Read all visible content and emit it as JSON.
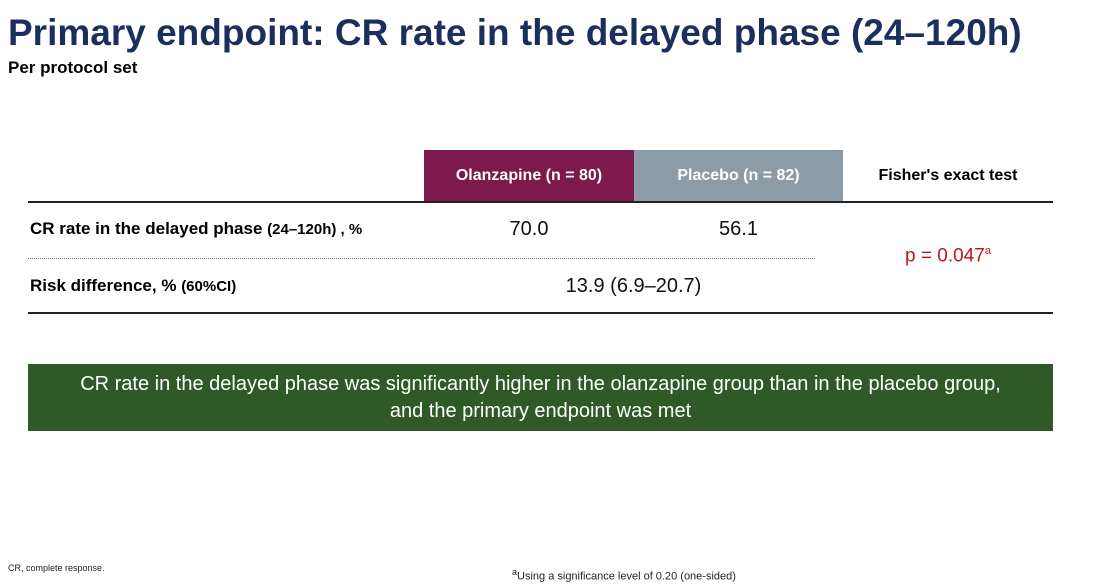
{
  "header": {
    "title": "Primary endpoint: CR rate in the delayed phase (24–120h)",
    "subtitle": "Per protocol set"
  },
  "table": {
    "columns": [
      "Olanzapine (n = 80)",
      "Placebo (n = 82)",
      "Fisher's exact test"
    ],
    "rows": [
      {
        "label": "CR rate in the delayed phase",
        "unit": "(24–120h) , %",
        "values": [
          "70.0",
          "56.1"
        ]
      },
      {
        "label": "Risk difference, %",
        "unit": "(60%CI)",
        "values": [
          "13.9 (6.9–20.7)"
        ]
      }
    ],
    "p_value": "p = 0.047",
    "p_value_note": "a"
  },
  "conclusion": "CR rate in the delayed phase was significantly higher in the olanzapine group than in the placebo group, and the primary endpoint was met",
  "footnotes": [
    {
      "text": "CR, complete response."
    },
    {
      "marker": "a",
      "text": "Using a significance level of 0.20 (one-sided)"
    }
  ]
}
